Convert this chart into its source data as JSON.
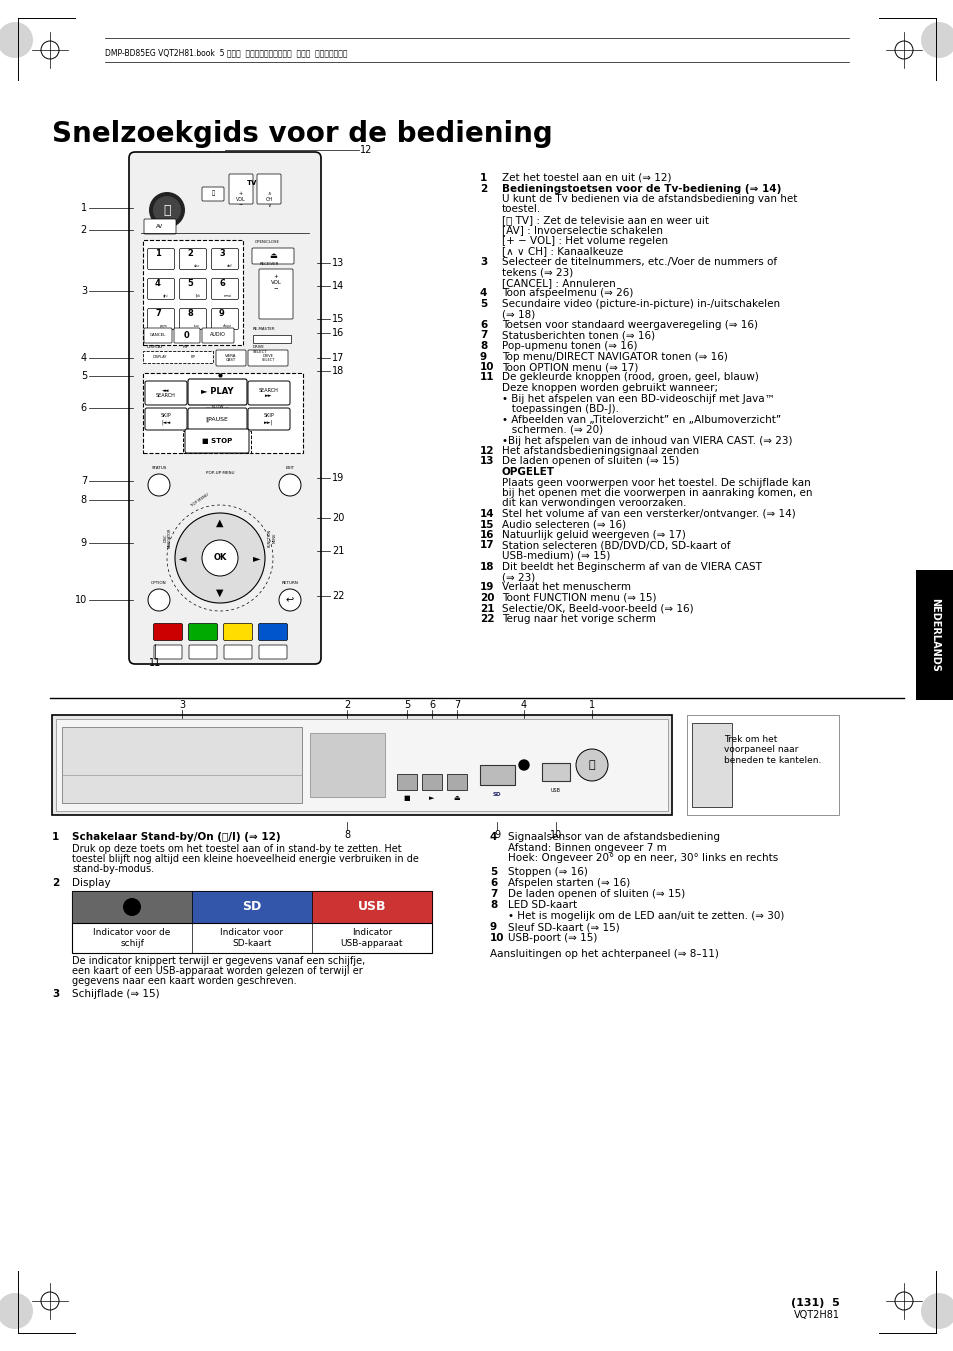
{
  "page_bg": "#ffffff",
  "header_text": "DMP-BD85EG VQT2H81.book  5 ページ  ２０１０年１月２０日  水曜日  午後８時５５分",
  "title": "Snelzoekgids voor de bediening",
  "right_items": [
    {
      "n": "1",
      "lines": [
        "Zet het toestel aan en uit (⇒ 12)"
      ]
    },
    {
      "n": "2",
      "lines": [
        "Bedieningstoetsen voor de Tv-bediening (⇒ 14)",
        "U kunt de Tv bedienen via de afstandsbediening van het",
        "toestel.",
        "[⏻ TV] : Zet de televisie aan en weer uit",
        "[AV] : Invoerselectie schakelen",
        "[+ − VOL] : Het volume regelen",
        "[∧ ∨ CH] : Kanaalkeuze"
      ],
      "bold_first": true
    },
    {
      "n": "3",
      "lines": [
        "Selecteer de titelnummers, etc./Voer de nummers of",
        "tekens (⇒ 23)",
        "[CANCEL] : Annuleren"
      ]
    },
    {
      "n": "4",
      "lines": [
        "Toon afspeelmenu (⇒ 26)"
      ]
    },
    {
      "n": "5",
      "lines": [
        "Secundaire video (picture-in-picture) in-/uitschakelen",
        "(⇒ 18)"
      ]
    },
    {
      "n": "6",
      "lines": [
        "Toetsen voor standaard weergaveregeling (⇒ 16)"
      ]
    },
    {
      "n": "7",
      "lines": [
        "Statusberichten tonen (⇒ 16)"
      ]
    },
    {
      "n": "8",
      "lines": [
        "Pop-upmenu tonen (⇒ 16)"
      ]
    },
    {
      "n": "9",
      "lines": [
        "Top menu/DIRECT NAVIGATOR tonen (⇒ 16)"
      ]
    },
    {
      "n": "10",
      "lines": [
        "Toon OPTION menu (⇒ 17)"
      ]
    },
    {
      "n": "11",
      "lines": [
        "De gekleurde knoppen (rood, groen, geel, blauw)",
        "Deze knoppen worden gebruikt wanneer;",
        "• Bij het afspelen van een BD-videoschijf met Java™",
        "   toepassingen (BD-J).",
        "• Afbeelden van „Titeloverzicht” en „Albumoverzicht”",
        "   schermen. (⇒ 20)",
        "•Bij het afspelen van de inhoud van VIERA CAST. (⇒ 23)"
      ]
    },
    {
      "n": "12",
      "lines": [
        "Het afstandsbedieningsignaal zenden"
      ]
    },
    {
      "n": "13",
      "lines": [
        "De laden openen of sluiten (⇒ 15)"
      ],
      "opgelet": [
        "OPGELET",
        "Plaats geen voorwerpen voor het toestel. De schijflade kan",
        "bij het openen met die voorwerpen in aanraking komen, en",
        "dit kan verwondingen veroorzaken."
      ]
    },
    {
      "n": "14",
      "lines": [
        "Stel het volume af van een versterker/ontvanger. (⇒ 14)"
      ]
    },
    {
      "n": "15",
      "lines": [
        "Audio selecteren (⇒ 16)"
      ]
    },
    {
      "n": "16",
      "lines": [
        "Natuurlijk geluid weergeven (⇒ 17)"
      ]
    },
    {
      "n": "17",
      "lines": [
        "Station selecteren (BD/DVD/CD, SD-kaart of",
        "USB-medium) (⇒ 15)"
      ]
    },
    {
      "n": "18",
      "lines": [
        "Dit beeldt het Beginscherm af van de VIERA CAST",
        "(⇒ 23)"
      ]
    },
    {
      "n": "19",
      "lines": [
        "Verlaat het menuscherm"
      ]
    },
    {
      "n": "20",
      "lines": [
        "Toont FUNCTION menu (⇒ 15)"
      ]
    },
    {
      "n": "21",
      "lines": [
        "Selectie/OK, Beeld-voor-beeld (⇒ 16)"
      ]
    },
    {
      "n": "22",
      "lines": [
        "Terug naar het vorige scherm"
      ]
    }
  ],
  "side_label": "NEDERLANDS",
  "footer_page": "(131)  5",
  "footer_code": "VQT2H81"
}
